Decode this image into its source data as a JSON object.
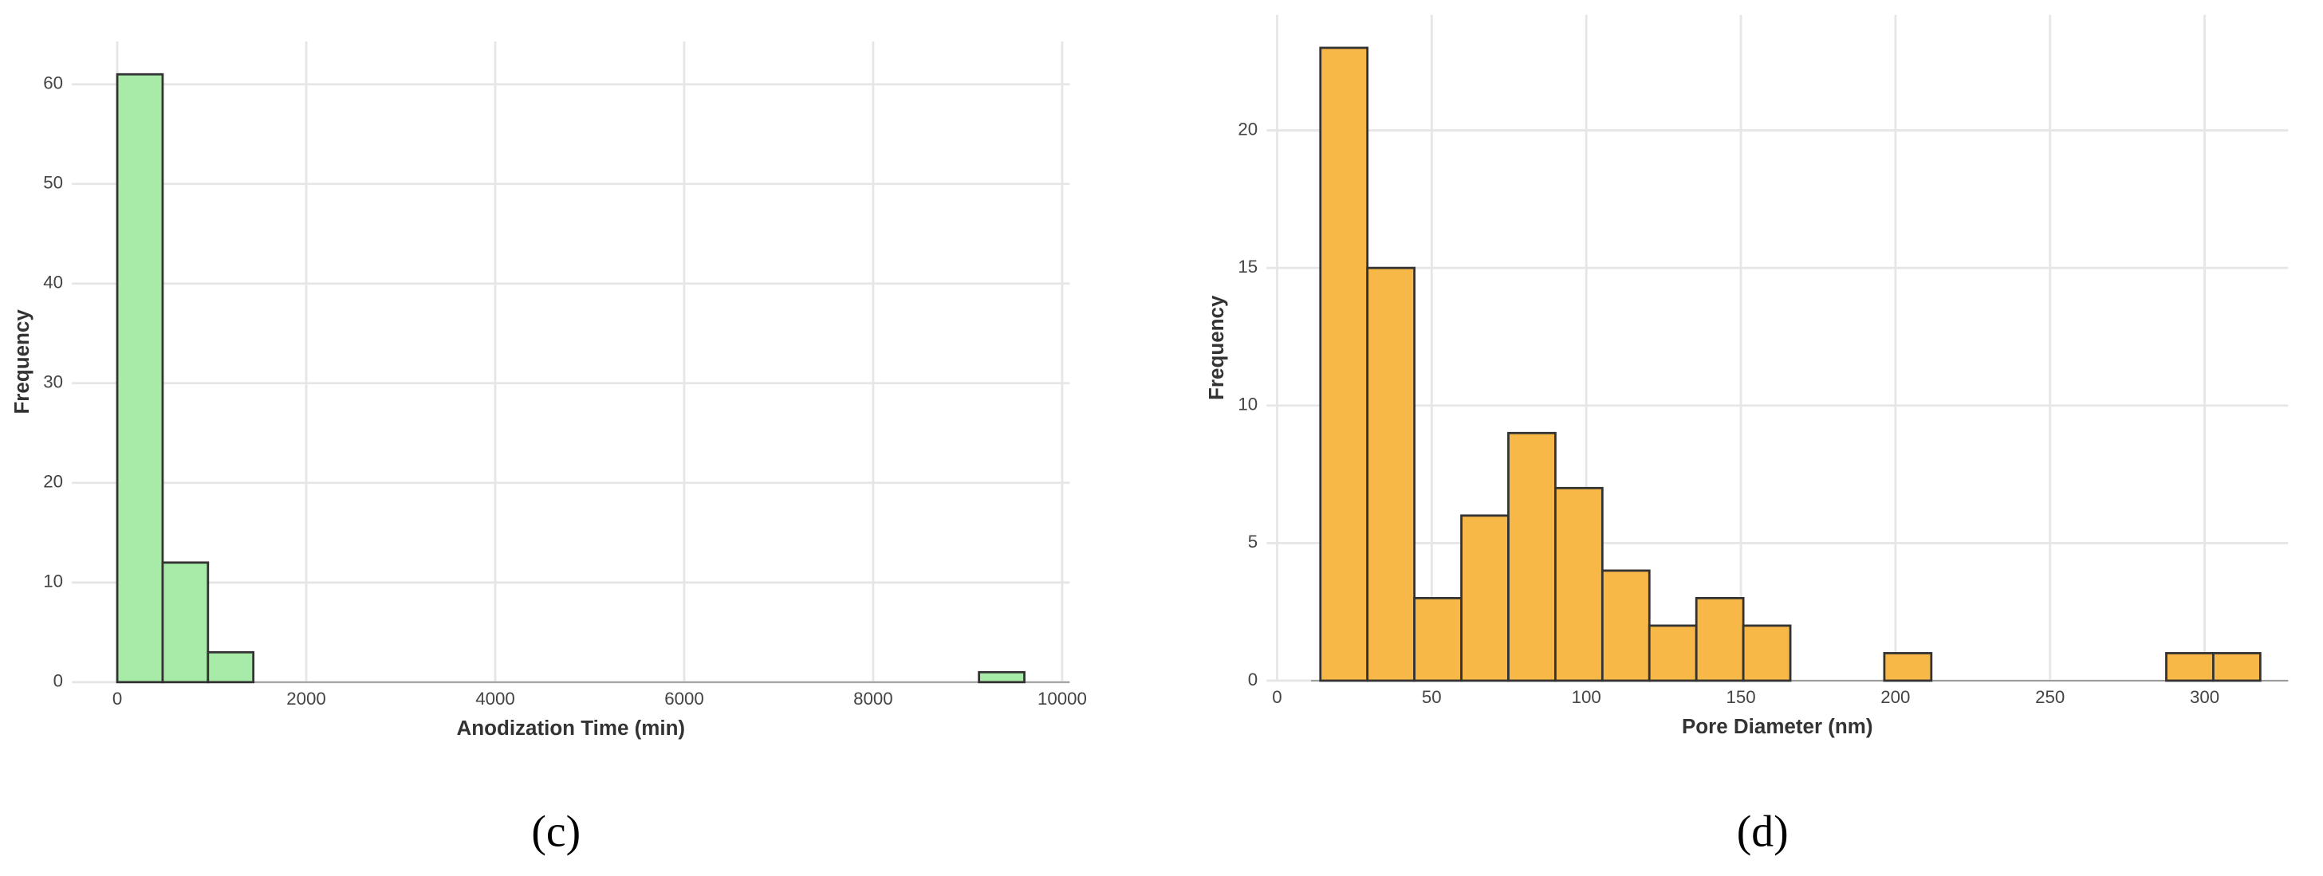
{
  "chart_data": [
    {
      "type": "histogram",
      "caption": "(c)",
      "xlabel": "Anodization Time (min)",
      "ylabel": "Frequency",
      "bins": [
        0,
        480,
        960,
        1440,
        1920,
        2400,
        2880,
        3360,
        3840,
        4320,
        4800,
        5280,
        5760,
        6240,
        6720,
        7200,
        7680,
        8160,
        8640,
        9120,
        9600
      ],
      "counts": [
        61,
        12,
        3,
        0,
        0,
        0,
        0,
        0,
        0,
        0,
        0,
        0,
        0,
        0,
        0,
        0,
        0,
        0,
        0,
        1
      ],
      "color": "#a8eaa8",
      "xlim": [
        -480,
        10080
      ],
      "ylim": [
        0,
        64.3
      ],
      "xticks": [
        0,
        2000,
        4000,
        6000,
        8000,
        10000
      ],
      "yticks": [
        0,
        10,
        20,
        30,
        40,
        50,
        60
      ],
      "grid": true
    },
    {
      "type": "histogram",
      "caption": "(d)",
      "xlabel": "Pore Diameter (nm)",
      "ylabel": "Frequency",
      "bins": [
        14,
        29.2,
        44.4,
        59.6,
        74.8,
        90,
        105.2,
        120.4,
        135.6,
        150.8,
        166,
        181.2,
        196.4,
        211.6,
        226.8,
        242,
        257.2,
        272.4,
        287.6,
        302.8,
        318
      ],
      "counts": [
        23,
        15,
        3,
        6,
        9,
        7,
        4,
        2,
        3,
        2,
        0,
        0,
        1,
        0,
        0,
        0,
        0,
        0,
        1,
        1
      ],
      "color": "#f8b848",
      "xlim": [
        -3.4,
        327
      ],
      "ylim": [
        0,
        24.2
      ],
      "xticks": [
        0,
        50,
        100,
        150,
        200,
        250,
        300
      ],
      "yticks": [
        0,
        5,
        10,
        15,
        20
      ],
      "grid": true
    }
  ]
}
